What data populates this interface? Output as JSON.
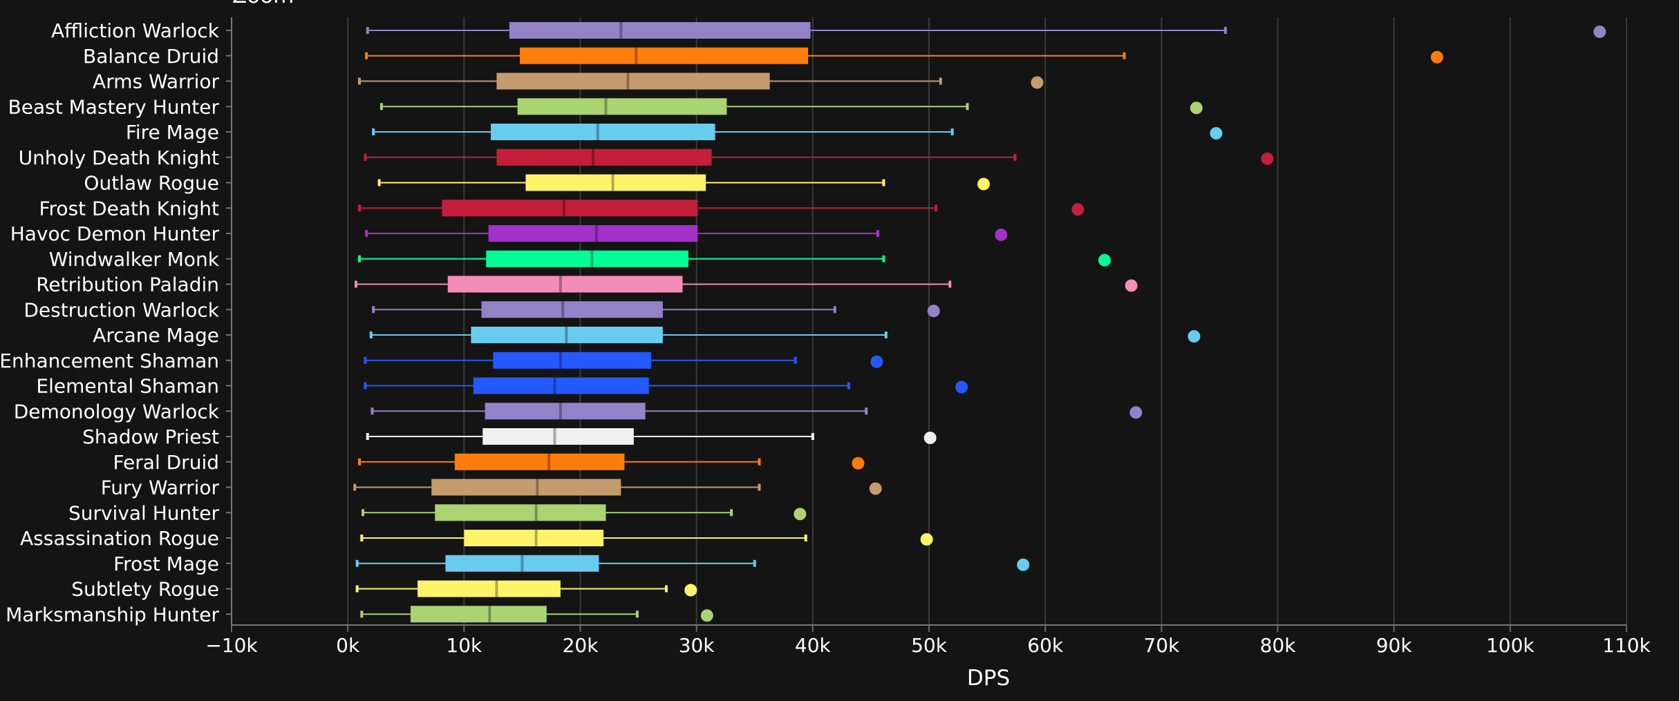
{
  "chart_data": {
    "type": "boxplot",
    "title": "Zoom",
    "xlabel": "DPS",
    "ylabel": "",
    "xlim": [
      -10000,
      110000
    ],
    "grid": true,
    "tick_values": [
      -10000,
      0,
      10000,
      20000,
      30000,
      40000,
      50000,
      60000,
      70000,
      80000,
      90000,
      100000,
      110000
    ],
    "tick_labels": [
      "−10k",
      "0k",
      "10k",
      "20k",
      "30k",
      "40k",
      "50k",
      "60k",
      "70k",
      "80k",
      "90k",
      "100k",
      "110k"
    ],
    "series": [
      {
        "name": "Affliction Warlock",
        "color": "#9482c9",
        "min": 1700,
        "q1": 13900,
        "median": 23500,
        "q3": 39800,
        "max": 75500,
        "outlier": 107700
      },
      {
        "name": "Balance Druid",
        "color": "#ff7c0a",
        "min": 1600,
        "q1": 14800,
        "median": 24800,
        "q3": 39600,
        "max": 66800,
        "outlier": 93700
      },
      {
        "name": "Arms Warrior",
        "color": "#c69b6d",
        "min": 1000,
        "q1": 12800,
        "median": 24100,
        "q3": 36300,
        "max": 51000,
        "outlier": 59300
      },
      {
        "name": "Beast Mastery Hunter",
        "color": "#aad372",
        "min": 2900,
        "q1": 14600,
        "median": 22200,
        "q3": 32600,
        "max": 53300,
        "outlier": 73000
      },
      {
        "name": "Fire Mage",
        "color": "#68ccef",
        "min": 2200,
        "q1": 12300,
        "median": 21500,
        "q3": 31600,
        "max": 52000,
        "outlier": 74700
      },
      {
        "name": "Unholy Death Knight",
        "color": "#c41e3a",
        "min": 1500,
        "q1": 12800,
        "median": 21100,
        "q3": 31300,
        "max": 57400,
        "outlier": 79100
      },
      {
        "name": "Outlaw Rogue",
        "color": "#fff468",
        "min": 2700,
        "q1": 15300,
        "median": 22800,
        "q3": 30800,
        "max": 46100,
        "outlier": 54700
      },
      {
        "name": "Frost Death Knight",
        "color": "#c41e3a",
        "min": 1000,
        "q1": 8100,
        "median": 18600,
        "q3": 30100,
        "max": 50600,
        "outlier": 62800
      },
      {
        "name": "Havoc Demon Hunter",
        "color": "#a330c9",
        "min": 1600,
        "q1": 12100,
        "median": 21400,
        "q3": 30100,
        "max": 45600,
        "outlier": 56200
      },
      {
        "name": "Windwalker Monk",
        "color": "#00ff98",
        "min": 1000,
        "q1": 11900,
        "median": 21000,
        "q3": 29300,
        "max": 46100,
        "outlier": 65100
      },
      {
        "name": "Retribution Paladin",
        "color": "#f48cba",
        "min": 700,
        "q1": 8600,
        "median": 18300,
        "q3": 28800,
        "max": 51800,
        "outlier": 67400
      },
      {
        "name": "Destruction Warlock",
        "color": "#9482c9",
        "min": 2200,
        "q1": 11500,
        "median": 18500,
        "q3": 27100,
        "max": 41900,
        "outlier": 50400
      },
      {
        "name": "Arcane Mage",
        "color": "#68ccef",
        "min": 2000,
        "q1": 10600,
        "median": 18800,
        "q3": 27100,
        "max": 46300,
        "outlier": 72800
      },
      {
        "name": "Enhancement Shaman",
        "color": "#2459ff",
        "min": 1500,
        "q1": 12500,
        "median": 18300,
        "q3": 26100,
        "max": 38500,
        "outlier": 45500
      },
      {
        "name": "Elemental Shaman",
        "color": "#2459ff",
        "min": 1500,
        "q1": 10800,
        "median": 17800,
        "q3": 25900,
        "max": 43100,
        "outlier": 52800
      },
      {
        "name": "Demonology Warlock",
        "color": "#9482c9",
        "min": 2100,
        "q1": 11800,
        "median": 18300,
        "q3": 25600,
        "max": 44600,
        "outlier": 67800
      },
      {
        "name": "Shadow Priest",
        "color": "#f0f0f0",
        "min": 1700,
        "q1": 11600,
        "median": 17800,
        "q3": 24600,
        "max": 40000,
        "outlier": 50100
      },
      {
        "name": "Feral Druid",
        "color": "#ff7c0a",
        "min": 1000,
        "q1": 9200,
        "median": 17300,
        "q3": 23800,
        "max": 35400,
        "outlier": 43900
      },
      {
        "name": "Fury Warrior",
        "color": "#c69b6d",
        "min": 600,
        "q1": 7200,
        "median": 16300,
        "q3": 23500,
        "max": 35400,
        "outlier": 45400
      },
      {
        "name": "Survival Hunter",
        "color": "#aad372",
        "min": 1300,
        "q1": 7500,
        "median": 16200,
        "q3": 22200,
        "max": 33000,
        "outlier": 38900
      },
      {
        "name": "Assassination Rogue",
        "color": "#fff468",
        "min": 1200,
        "q1": 10000,
        "median": 16200,
        "q3": 22000,
        "max": 39400,
        "outlier": 49800
      },
      {
        "name": "Frost Mage",
        "color": "#68ccef",
        "min": 800,
        "q1": 8400,
        "median": 15000,
        "q3": 21600,
        "max": 35000,
        "outlier": 58100
      },
      {
        "name": "Subtlety Rogue",
        "color": "#fff468",
        "min": 800,
        "q1": 6000,
        "median": 12800,
        "q3": 18300,
        "max": 27400,
        "outlier": 29500
      },
      {
        "name": "Marksmanship Hunter",
        "color": "#aad372",
        "min": 1200,
        "q1": 5400,
        "median": 12200,
        "q3": 17100,
        "max": 24900,
        "outlier": 30900
      }
    ]
  }
}
